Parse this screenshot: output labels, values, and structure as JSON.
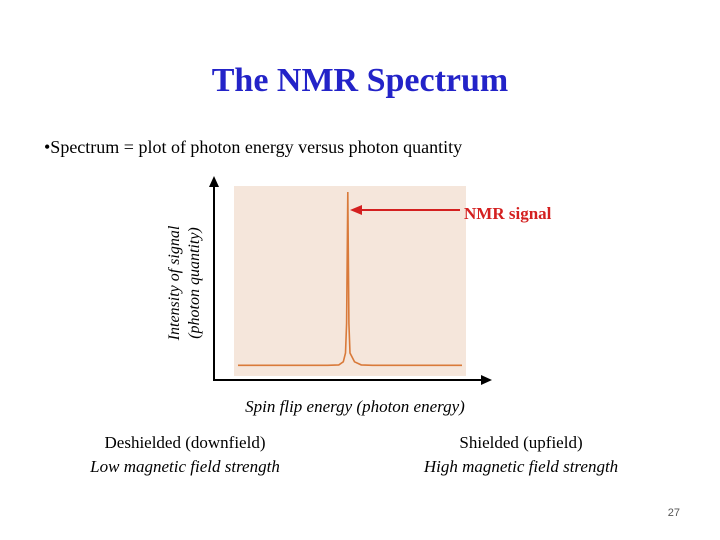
{
  "slide": {
    "title": "The NMR Spectrum",
    "bullet": "•Spectrum = plot of photon energy versus photon quantity",
    "page_number": "27"
  },
  "chart_data": {
    "type": "line",
    "title": "",
    "ylabel": [
      "Intensity of signal",
      "(photon quantity)"
    ],
    "xlabel": "Spin flip energy (photon energy)",
    "x": [
      0,
      40,
      45,
      47,
      48,
      48.5,
      49,
      49.5,
      50,
      52,
      55,
      60,
      100
    ],
    "values": [
      1,
      1,
      1.2,
      3,
      8,
      25,
      100,
      25,
      8,
      3,
      1.2,
      1,
      1
    ],
    "xlim": [
      0,
      100
    ],
    "ylim": [
      0,
      100
    ],
    "peak_annotation": "NMR signal",
    "background_color": "#f5e6db",
    "line_color": "#d97a3a",
    "arrow_color": "#d42020"
  },
  "axis_captions": {
    "left": {
      "line1": "Deshielded (downfield)",
      "line2": "Low magnetic field strength"
    },
    "right": {
      "line1": "Shielded (upfield)",
      "line2": "High magnetic field strength"
    }
  }
}
